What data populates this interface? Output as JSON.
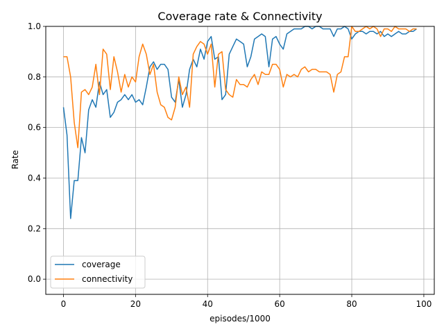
{
  "chart_data": {
    "type": "line",
    "title": "Coverage rate & Connectivity",
    "xlabel": "episodes/1000",
    "ylabel": "Rate",
    "xlim": [
      -4.9,
      102.9
    ],
    "ylim": [
      -0.06,
      1.0
    ],
    "xticks": [
      0,
      20,
      40,
      60,
      80,
      100
    ],
    "yticks": [
      0.0,
      0.2,
      0.4,
      0.6,
      0.8,
      1.0
    ],
    "grid": true,
    "legend_position": "lower-left",
    "series": [
      {
        "name": "coverage",
        "color": "#1f77b4",
        "x": [
          0,
          1,
          2,
          3,
          4,
          5,
          6,
          7,
          8,
          9,
          10,
          11,
          12,
          13,
          14,
          15,
          16,
          17,
          18,
          19,
          20,
          21,
          22,
          23,
          24,
          25,
          26,
          27,
          28,
          29,
          30,
          31,
          32,
          33,
          34,
          35,
          36,
          37,
          38,
          39,
          40,
          41,
          42,
          43,
          44,
          45,
          46,
          47,
          48,
          49,
          50,
          51,
          52,
          53,
          54,
          55,
          56,
          57,
          58,
          59,
          60,
          61,
          62,
          63,
          64,
          65,
          66,
          67,
          68,
          69,
          70,
          71,
          72,
          73,
          74,
          75,
          76,
          77,
          78,
          79,
          80,
          81,
          82,
          83,
          84,
          85,
          86,
          87,
          88,
          89,
          90,
          91,
          92,
          93,
          94,
          95,
          96,
          97,
          98
        ],
        "y": [
          0.68,
          0.57,
          0.24,
          0.39,
          0.39,
          0.56,
          0.5,
          0.67,
          0.71,
          0.68,
          0.78,
          0.73,
          0.75,
          0.64,
          0.66,
          0.7,
          0.71,
          0.73,
          0.71,
          0.73,
          0.7,
          0.71,
          0.69,
          0.76,
          0.84,
          0.86,
          0.83,
          0.85,
          0.85,
          0.83,
          0.72,
          0.7,
          0.79,
          0.68,
          0.73,
          0.83,
          0.87,
          0.84,
          0.91,
          0.87,
          0.94,
          0.96,
          0.87,
          0.88,
          0.71,
          0.73,
          0.89,
          0.92,
          0.95,
          0.94,
          0.93,
          0.84,
          0.88,
          0.95,
          0.96,
          0.97,
          0.96,
          0.84,
          0.95,
          0.96,
          0.93,
          0.91,
          0.97,
          0.98,
          0.99,
          0.99,
          0.99,
          1.0,
          1.0,
          0.99,
          1.0,
          1.0,
          0.99,
          0.99,
          0.99,
          0.96,
          0.99,
          0.99,
          1.0,
          0.99,
          0.95,
          0.97,
          0.98,
          0.98,
          0.97,
          0.98,
          0.98,
          0.97,
          0.98,
          0.96,
          0.97,
          0.96,
          0.97,
          0.98,
          0.97,
          0.97,
          0.98,
          0.98,
          0.99
        ]
      },
      {
        "name": "connectivity",
        "color": "#ff7f0e",
        "x": [
          0,
          1,
          2,
          3,
          4,
          5,
          6,
          7,
          8,
          9,
          10,
          11,
          12,
          13,
          14,
          15,
          16,
          17,
          18,
          19,
          20,
          21,
          22,
          23,
          24,
          25,
          26,
          27,
          28,
          29,
          30,
          31,
          32,
          33,
          34,
          35,
          36,
          37,
          38,
          39,
          40,
          41,
          42,
          43,
          44,
          45,
          46,
          47,
          48,
          49,
          50,
          51,
          52,
          53,
          54,
          55,
          56,
          57,
          58,
          59,
          60,
          61,
          62,
          63,
          64,
          65,
          66,
          67,
          68,
          69,
          70,
          71,
          72,
          73,
          74,
          75,
          76,
          77,
          78,
          79,
          80,
          81,
          82,
          83,
          84,
          85,
          86,
          87,
          88,
          89,
          90,
          91,
          92,
          93,
          94,
          95,
          96,
          97,
          98
        ],
        "y": [
          0.88,
          0.88,
          0.8,
          0.62,
          0.52,
          0.74,
          0.75,
          0.73,
          0.76,
          0.85,
          0.73,
          0.91,
          0.89,
          0.75,
          0.88,
          0.82,
          0.74,
          0.81,
          0.76,
          0.8,
          0.78,
          0.88,
          0.93,
          0.89,
          0.81,
          0.85,
          0.74,
          0.69,
          0.68,
          0.64,
          0.63,
          0.68,
          0.8,
          0.73,
          0.76,
          0.68,
          0.89,
          0.92,
          0.94,
          0.93,
          0.89,
          0.93,
          0.76,
          0.89,
          0.9,
          0.75,
          0.73,
          0.72,
          0.79,
          0.77,
          0.77,
          0.76,
          0.79,
          0.81,
          0.77,
          0.82,
          0.81,
          0.81,
          0.85,
          0.85,
          0.83,
          0.76,
          0.81,
          0.8,
          0.81,
          0.8,
          0.83,
          0.84,
          0.82,
          0.83,
          0.83,
          0.82,
          0.82,
          0.82,
          0.81,
          0.74,
          0.81,
          0.82,
          0.88,
          0.88,
          1.0,
          0.98,
          0.98,
          0.99,
          1.0,
          0.99,
          1.0,
          0.99,
          0.96,
          0.99,
          0.99,
          0.98,
          1.0,
          0.99,
          0.99,
          0.99,
          0.98,
          0.99,
          0.99
        ]
      }
    ]
  }
}
